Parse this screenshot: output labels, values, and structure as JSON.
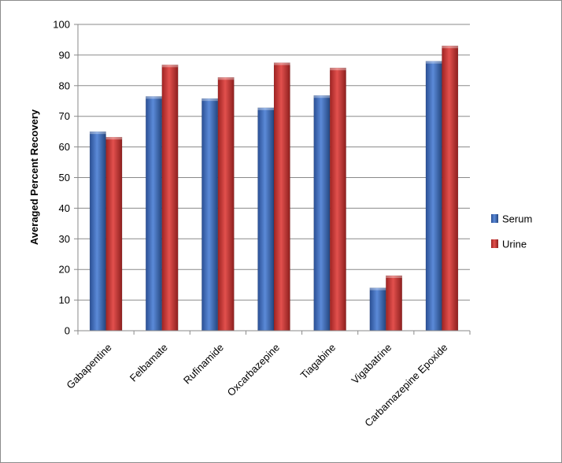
{
  "chart_data": {
    "type": "bar",
    "title": "",
    "xlabel": "",
    "ylabel": "Averaged Percent Recovery",
    "ylim": [
      0,
      100
    ],
    "ytick_step": 10,
    "grid": true,
    "legend_position": "right",
    "categories": [
      "Gabapentine",
      "Felbamate",
      "Rufinamide",
      "Oxcarbazepine",
      "Tiagabine",
      "Vigabatrine",
      "Carbamazepine Epoxide"
    ],
    "series": [
      {
        "name": "Serum",
        "color": "#3f6fc4",
        "values": [
          65,
          76.5,
          75.8,
          72.8,
          76.8,
          14,
          88
        ]
      },
      {
        "name": "Urine",
        "color": "#cf3634",
        "values": [
          63.2,
          86.8,
          82.7,
          87.5,
          85.8,
          18,
          93
        ]
      }
    ]
  }
}
